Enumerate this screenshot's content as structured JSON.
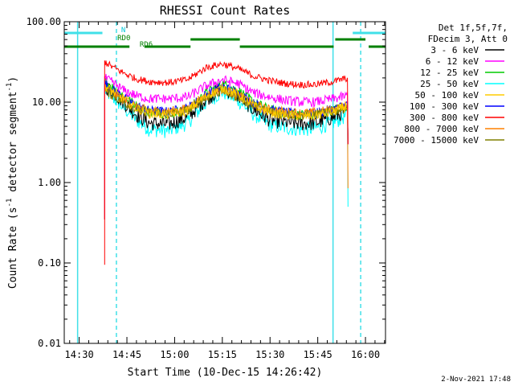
{
  "chart_data": {
    "type": "line",
    "title": "RHESSI Count Rates",
    "xlabel": "Start Time (10-Dec-15 14:26:42)",
    "ylabel_parts": [
      "Count Rate (s",
      "-1",
      " detector segment",
      "-1",
      ")"
    ],
    "yscale": "log",
    "ylim": [
      0.01,
      100
    ],
    "xlim_minutes": [
      -4.7,
      96.3
    ],
    "yticks": [
      {
        "value": 100,
        "label": "100.00"
      },
      {
        "value": 10,
        "label": "10.00"
      },
      {
        "value": 1,
        "label": "1.00"
      },
      {
        "value": 0.1,
        "label": "0.10"
      },
      {
        "value": 0.01,
        "label": "0.01"
      }
    ],
    "xticks": [
      {
        "minutes": 0,
        "label": "14:30"
      },
      {
        "minutes": 15,
        "label": "14:45"
      },
      {
        "minutes": 30,
        "label": "15:00"
      },
      {
        "minutes": 45,
        "label": "15:15"
      },
      {
        "minutes": 60,
        "label": "15:30"
      },
      {
        "minutes": 75,
        "label": "15:45"
      },
      {
        "minutes": 90,
        "label": "16:00"
      }
    ],
    "legend_header": [
      "Det 1f,5f,7f,",
      "FDecim 3, Att 0"
    ],
    "legend_position": "right",
    "series": [
      {
        "name": "3 - 6 keV",
        "color": "#000000",
        "x": [
          8,
          10,
          14,
          18,
          22,
          28,
          34,
          40,
          45,
          50,
          55,
          60,
          65,
          70,
          74,
          80,
          84.5
        ],
        "y": [
          16,
          14,
          10,
          7,
          5.5,
          5.3,
          6.5,
          11,
          15,
          12,
          8,
          6,
          5.6,
          5.4,
          5.5,
          6.5,
          8
        ]
      },
      {
        "name": "6 - 12 keV",
        "color": "#ff00ff",
        "x": [
          8,
          10,
          14,
          18,
          22,
          28,
          34,
          40,
          45,
          50,
          55,
          60,
          65,
          70,
          74,
          80,
          84.5
        ],
        "y": [
          20,
          18,
          14,
          12,
          11,
          11,
          11.5,
          16,
          19,
          17,
          13,
          11.5,
          10.5,
          10,
          10,
          11,
          12
        ]
      },
      {
        "name": "12 - 25 keV",
        "color": "#00cc00",
        "x": [
          8,
          10,
          14,
          18,
          22,
          28,
          34,
          40,
          45,
          50,
          55,
          60,
          65,
          70,
          74,
          80,
          84.5
        ],
        "y": [
          18,
          16,
          12,
          9,
          7.5,
          7.2,
          8,
          13,
          17,
          14,
          10,
          8,
          7.2,
          7,
          7,
          8,
          9
        ]
      },
      {
        "name": "25 - 50 keV",
        "color": "#00ffff",
        "x": [
          8,
          10,
          14,
          18,
          22,
          28,
          34,
          40,
          45,
          50,
          55,
          60,
          65,
          70,
          74,
          80,
          84.5
        ],
        "y": [
          14,
          12,
          8.5,
          6,
          4.6,
          4.4,
          5.5,
          10,
          13.5,
          10.5,
          7,
          5.2,
          4.8,
          4.6,
          4.7,
          5.6,
          7
        ]
      },
      {
        "name": "50 - 100 keV",
        "color": "#ffcc00",
        "x": [
          8,
          10,
          14,
          18,
          22,
          28,
          34,
          40,
          45,
          50,
          55,
          60,
          65,
          70,
          74,
          80,
          84.5
        ],
        "y": [
          16,
          14,
          11,
          8.5,
          7.2,
          7,
          7.8,
          12,
          15,
          12.5,
          9,
          7.4,
          6.9,
          6.7,
          6.8,
          7.6,
          9
        ]
      },
      {
        "name": "100 - 300 keV",
        "color": "#0000ff",
        "x": [
          8,
          10,
          14,
          18,
          22,
          28,
          34,
          40,
          45,
          50,
          55,
          60,
          65,
          70,
          74,
          80,
          84.5
        ],
        "y": [
          17,
          15,
          11.5,
          9,
          7.8,
          7.6,
          8.4,
          12.5,
          15.5,
          13,
          9.5,
          8,
          7.4,
          7.2,
          7.3,
          8.2,
          9.5
        ]
      },
      {
        "name": "300 - 800 keV",
        "color": "#ff0000",
        "x": [
          8,
          10,
          14,
          18,
          22,
          28,
          34,
          40,
          45,
          50,
          55,
          60,
          65,
          70,
          74,
          80,
          84.5
        ],
        "y": [
          32,
          28,
          23,
          19.5,
          18,
          17.5,
          19,
          27,
          30,
          26,
          21,
          18.5,
          17,
          16.5,
          16.5,
          18,
          20
        ]
      },
      {
        "name": "800 - 7000 keV",
        "color": "#ff8000",
        "x": [
          8,
          10,
          14,
          18,
          22,
          28,
          34,
          40,
          45,
          50,
          55,
          60,
          65,
          70,
          74,
          80,
          84.5
        ],
        "y": [
          15,
          13,
          10.5,
          8.6,
          7.8,
          7.6,
          8.3,
          12,
          14.5,
          12,
          9.2,
          8,
          7.5,
          7.3,
          7.4,
          8.1,
          9.2
        ]
      },
      {
        "name": "7000 - 15000 keV",
        "color": "#808000",
        "x": [
          8,
          10,
          14,
          18,
          22,
          28,
          34,
          40,
          45,
          50,
          55,
          60,
          65,
          70,
          74,
          80,
          84.5
        ],
        "y": [
          14,
          12.5,
          10,
          8.2,
          7.4,
          7.2,
          7.9,
          11.5,
          14,
          11.5,
          8.8,
          7.6,
          7.1,
          6.9,
          7,
          7.7,
          8.8
        ]
      }
    ],
    "annotations": {
      "night_segments": [
        [
          -4.7,
          7.3
        ],
        [
          86,
          96.3
        ]
      ],
      "night_label": {
        "text": "N",
        "at": 13.2
      },
      "saa_segments": [
        [
          -4.7,
          15.8
        ]
      ],
      "rd0_label": {
        "text": "RD0",
        "at": 12
      },
      "rd6_label": {
        "text": "RD6",
        "at": 19
      },
      "rd_bars": [
        [
          -4.7,
          15.8
        ],
        [
          20.5,
          35
        ],
        [
          35,
          50.5
        ],
        [
          50.5,
          80
        ],
        [
          80.5,
          90
        ],
        [
          91,
          96.3
        ]
      ],
      "vlines_solid": [
        -0.5,
        79.8
      ],
      "vlines_dashed": [
        11.7,
        88.5
      ]
    },
    "grid": false
  },
  "footer": {
    "timestamp": "2-Nov-2021 17:48"
  }
}
